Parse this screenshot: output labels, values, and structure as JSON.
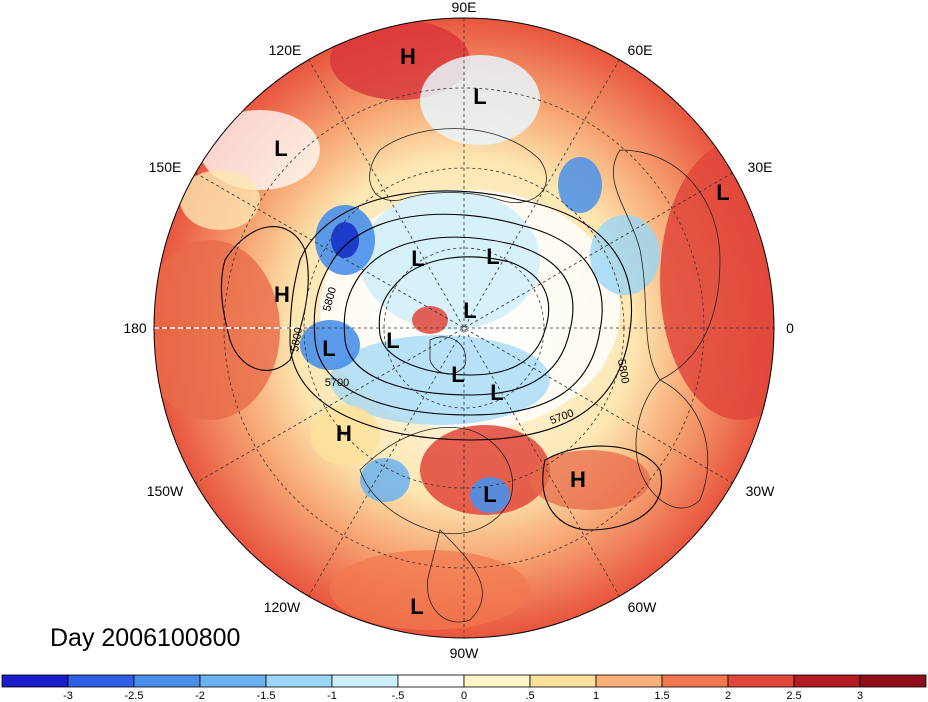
{
  "day_label": "Day 2006100800",
  "longitude_labels": {
    "lon_90e": "90E",
    "lon_120e": "120E",
    "lon_60e": "60E",
    "lon_150e": "150E",
    "lon_30e": "30E",
    "lon_180": "180",
    "lon_0": "0",
    "lon_150w": "150W",
    "lon_30w": "30W",
    "lon_120w": "120W",
    "lon_60w": "60W",
    "lon_90w": "90W"
  },
  "contour_labels": [
    "5800",
    "5800",
    "5700",
    "5800",
    "5700"
  ],
  "pressure_centers": [
    {
      "label": "H"
    },
    {
      "label": "L"
    },
    {
      "label": "L"
    },
    {
      "label": "L"
    },
    {
      "label": "H"
    },
    {
      "label": "L"
    },
    {
      "label": "L"
    },
    {
      "label": "L"
    },
    {
      "label": "L"
    },
    {
      "label": "L"
    },
    {
      "label": "L"
    },
    {
      "label": "L"
    },
    {
      "label": "H"
    },
    {
      "label": "L"
    },
    {
      "label": "H"
    },
    {
      "label": "L"
    }
  ],
  "colorbar": {
    "ticks": [
      "-3",
      "-2.5",
      "-2",
      "-1.5",
      "-1",
      "-.5",
      "0",
      ".5",
      "1",
      "1.5",
      "2",
      "2.5",
      "3"
    ],
    "colors": [
      "#1c1ccc",
      "#2f5ee6",
      "#4a90ea",
      "#6cb2f0",
      "#9ad6f6",
      "#cdeefb",
      "#ffffff",
      "#fff5c8",
      "#fde19a",
      "#f9b078",
      "#f2774f",
      "#e0463a",
      "#b31b22",
      "#8f0c18"
    ]
  }
}
